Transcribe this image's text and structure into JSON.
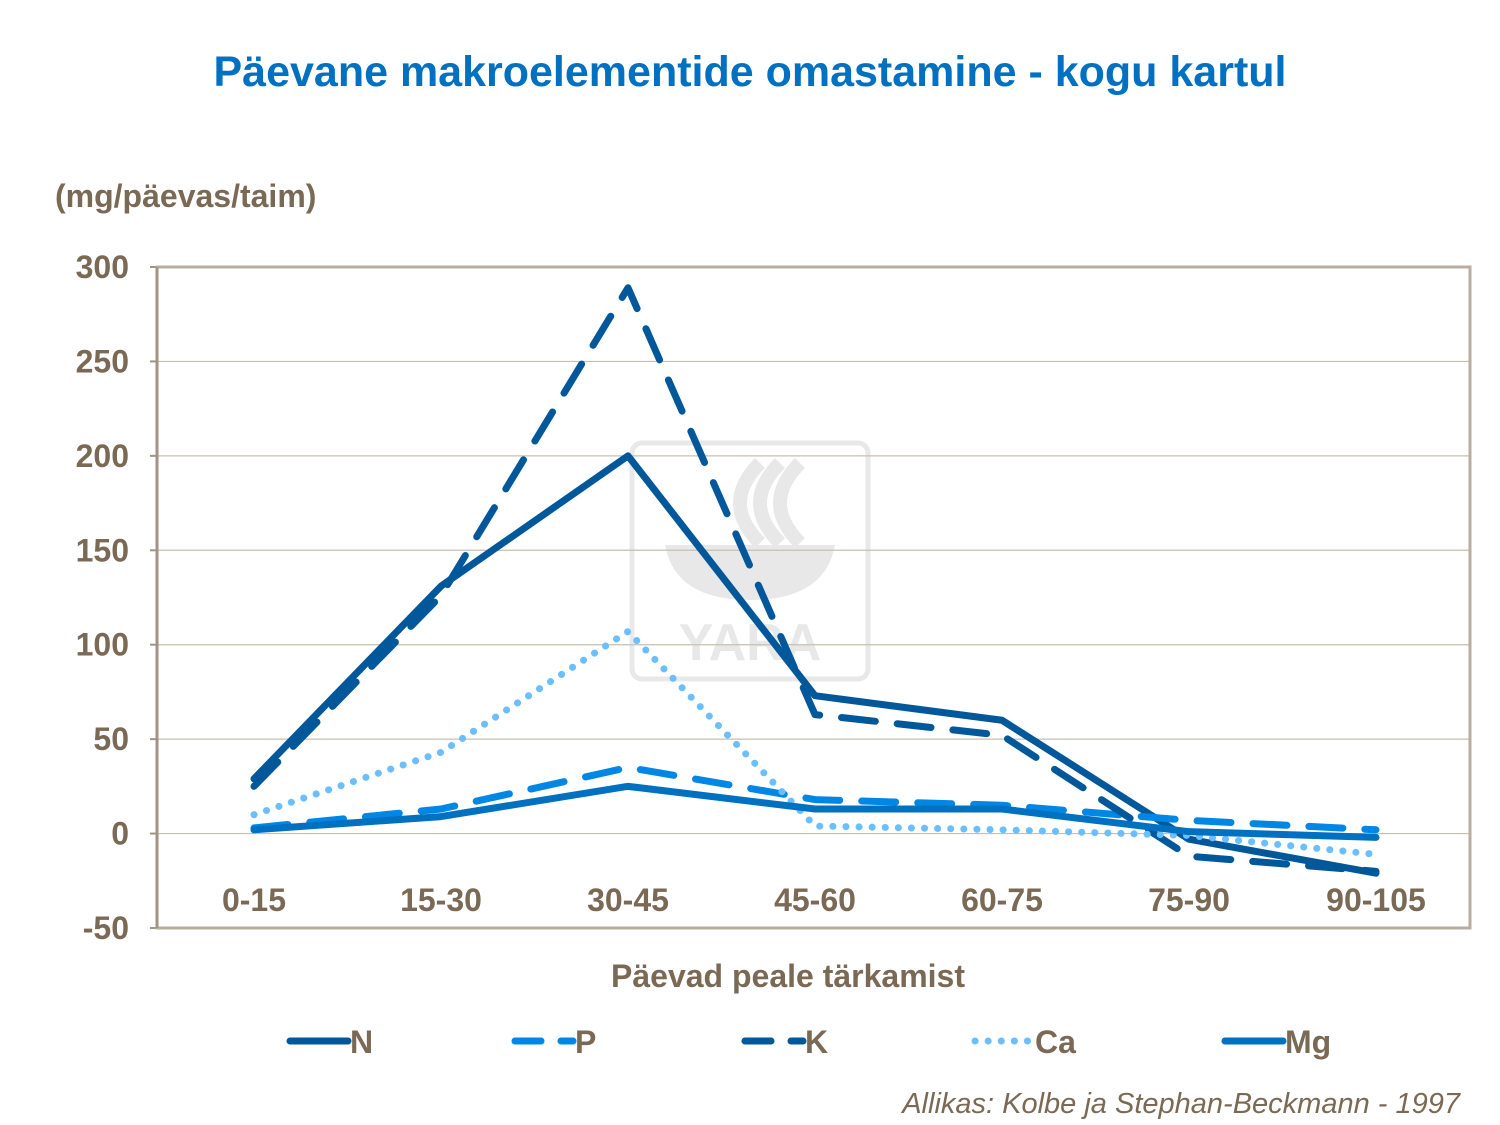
{
  "chart_data": {
    "type": "line",
    "title": "Päevane makroelementide omastamine - kogu kartul",
    "ylabel": "(mg/päevas/taim)",
    "xlabel": "Päevad peale tärkamist",
    "categories": [
      "0-15",
      "15-30",
      "30-45",
      "45-60",
      "60-75",
      "75-90",
      "90-105"
    ],
    "ylim": [
      -50,
      300
    ],
    "yticks": [
      300,
      250,
      200,
      150,
      100,
      50,
      0,
      -50
    ],
    "grid": true,
    "legend": "bottom",
    "series": [
      {
        "name": "N",
        "values": [
          29,
          131,
          200,
          73,
          60,
          -3,
          -21
        ],
        "color": "#00589b",
        "style": "solid"
      },
      {
        "name": "P",
        "values": [
          3,
          13,
          35,
          18,
          15,
          7,
          2
        ],
        "color": "#0087e6",
        "style": "dashed"
      },
      {
        "name": "K",
        "values": [
          25,
          126,
          289,
          63,
          52,
          -12,
          -20
        ],
        "color": "#00589b",
        "style": "dashed"
      },
      {
        "name": "Ca",
        "values": [
          10,
          43,
          107,
          4,
          2,
          -1,
          -11
        ],
        "color": "#6cbfff",
        "style": "dotted"
      },
      {
        "name": "Mg",
        "values": [
          2,
          9,
          25,
          13,
          13,
          1,
          -2
        ],
        "color": "#0070c0",
        "style": "solid"
      }
    ],
    "source": "Allikas: Kolbe ja Stephan-Beckmann - 1997",
    "watermark": "YARA"
  }
}
